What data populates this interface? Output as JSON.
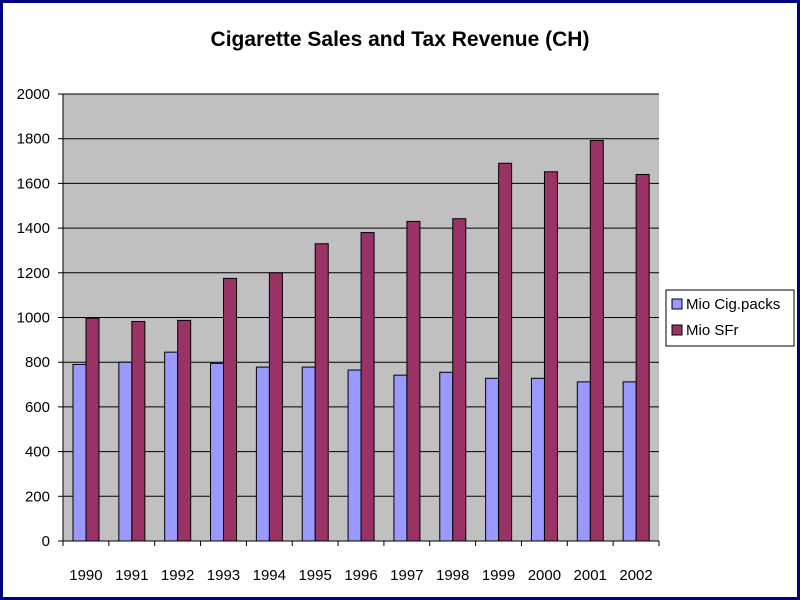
{
  "chart_data": {
    "type": "bar",
    "title": "Cigarette Sales and Tax Revenue (CH)",
    "xlabel": "",
    "ylabel": "",
    "categories": [
      "1990",
      "1991",
      "1992",
      "1993",
      "1994",
      "1995",
      "1996",
      "1997",
      "1998",
      "1999",
      "2000",
      "2001",
      "2002"
    ],
    "ylim": [
      0,
      2000
    ],
    "yticks": [
      "0",
      "200",
      "400",
      "600",
      "800",
      "1000",
      "1200",
      "1400",
      "1600",
      "1800",
      "2000"
    ],
    "grid": true,
    "legend_position": "right",
    "series": [
      {
        "name": "Mio Cig.packs",
        "color": "#9999ff",
        "values": [
          790,
          800,
          845,
          795,
          778,
          778,
          765,
          742,
          755,
          728,
          728,
          712,
          712
        ]
      },
      {
        "name": "Mio SFr",
        "color": "#993366",
        "values": [
          997,
          982,
          987,
          1175,
          1200,
          1330,
          1380,
          1430,
          1442,
          1690,
          1652,
          1792,
          1640
        ]
      }
    ],
    "colors": {
      "plot_background": "#c0c0c0",
      "gridline": "#000000",
      "frame_border": "#000080"
    }
  }
}
